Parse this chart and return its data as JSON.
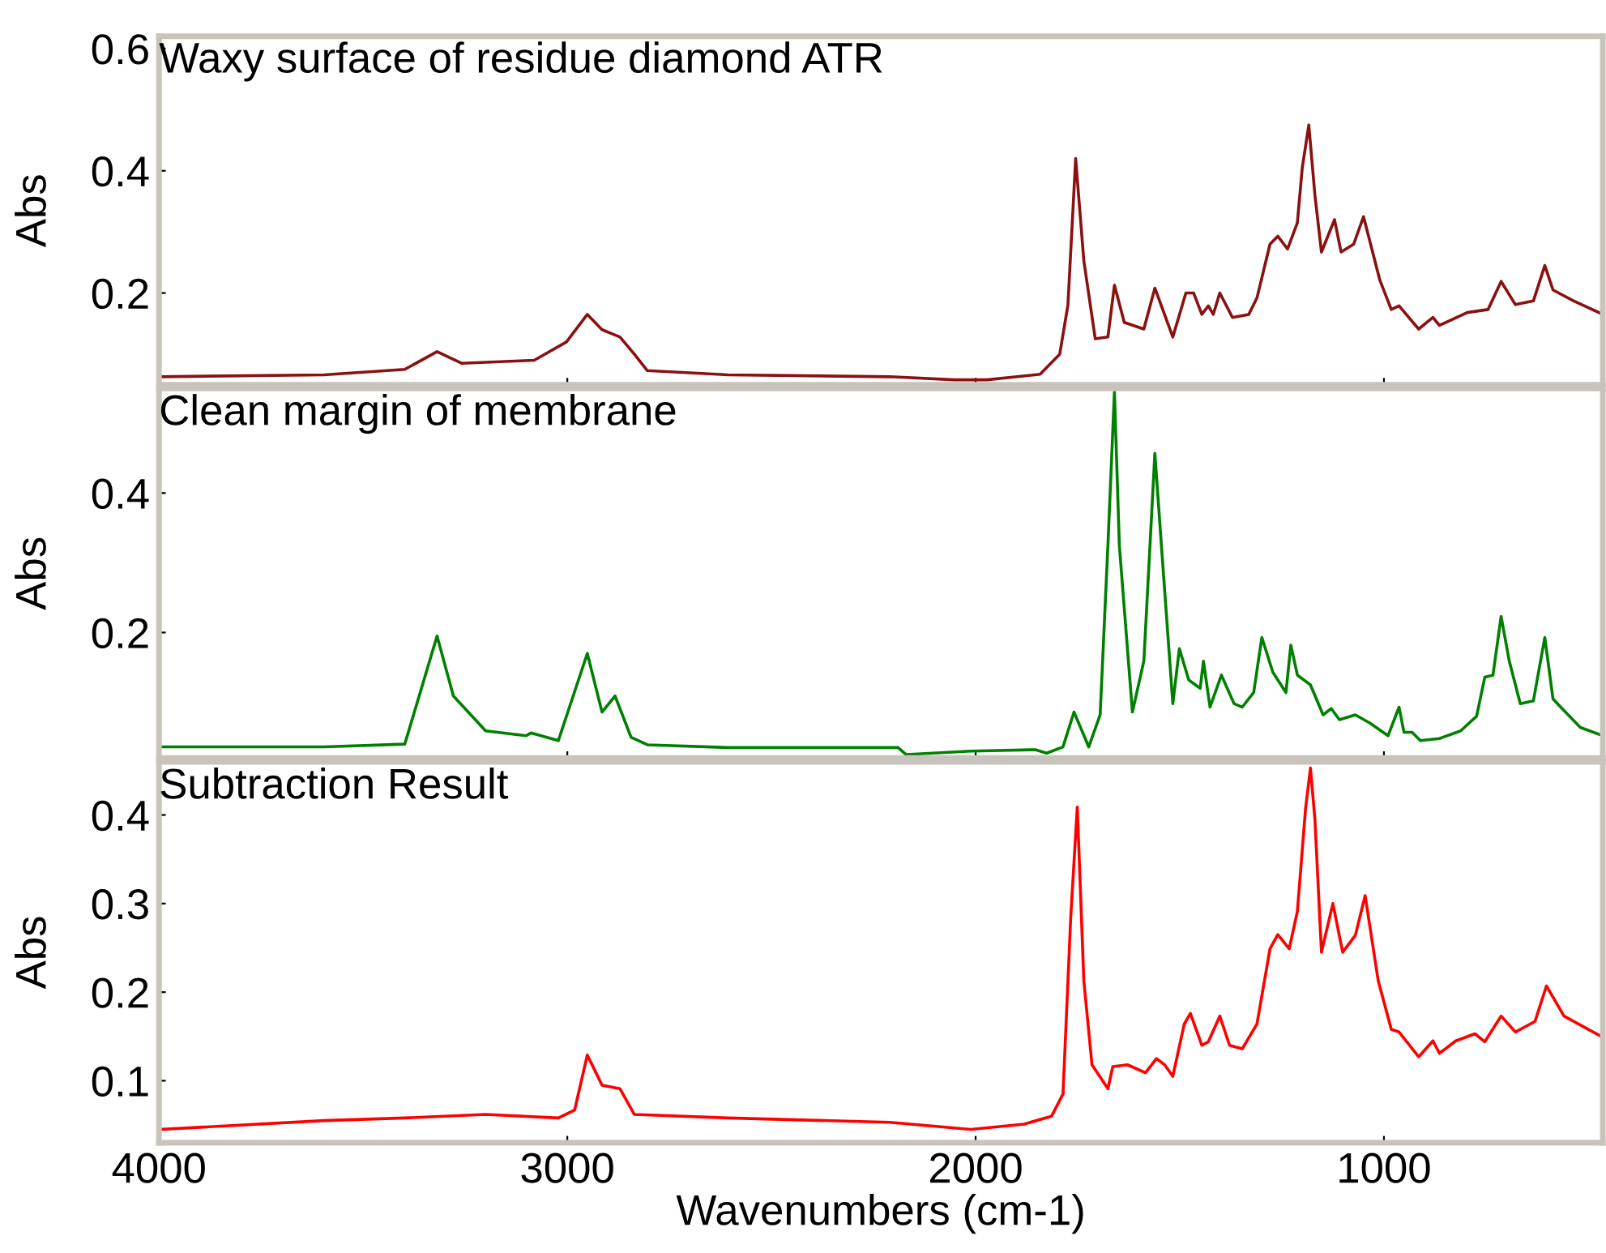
{
  "chart_data": [
    {
      "type": "line",
      "title": "Waxy surface of residue diamond ATR",
      "ylabel": "Abs",
      "xlim": [
        4000,
        464
      ],
      "ylim": [
        0.05,
        0.62
      ],
      "xticks": [
        4000,
        3000,
        2000,
        1000
      ],
      "yticks": [
        0.2,
        0.4,
        0.6
      ],
      "tick_labels": "y",
      "series": [
        {
          "color": "#8b1010",
          "x": [
            4000,
            3596,
            3398,
            3319,
            3259,
            3081,
            3002,
            2951,
            2915,
            2871,
            2836,
            2804,
            2606,
            2210,
            2052,
            1972,
            1842,
            1794,
            1774,
            1755,
            1735,
            1707,
            1676,
            1660,
            1636,
            1588,
            1561,
            1517,
            1485,
            1466,
            1446,
            1430,
            1418,
            1402,
            1371,
            1331,
            1311,
            1279,
            1260,
            1236,
            1212,
            1200,
            1184,
            1169,
            1153,
            1121,
            1105,
            1074,
            1050,
            1010,
            982,
            963,
            915,
            880,
            864,
            796,
            745,
            713,
            678,
            634,
            606,
            586,
            535,
            464
          ],
          "values": [
            0.063,
            0.066,
            0.075,
            0.104,
            0.085,
            0.09,
            0.12,
            0.165,
            0.14,
            0.128,
            0.1,
            0.073,
            0.066,
            0.063,
            0.058,
            0.058,
            0.067,
            0.1,
            0.18,
            0.42,
            0.253,
            0.125,
            0.128,
            0.213,
            0.152,
            0.141,
            0.208,
            0.128,
            0.2,
            0.2,
            0.165,
            0.179,
            0.165,
            0.2,
            0.16,
            0.165,
            0.192,
            0.28,
            0.293,
            0.272,
            0.315,
            0.405,
            0.475,
            0.36,
            0.267,
            0.32,
            0.267,
            0.28,
            0.325,
            0.221,
            0.173,
            0.179,
            0.141,
            0.16,
            0.147,
            0.168,
            0.173,
            0.219,
            0.181,
            0.187,
            0.245,
            0.205,
            0.187,
            0.165
          ]
        }
      ]
    },
    {
      "type": "line",
      "title": "Clean margin of membrane",
      "ylabel": "Abs",
      "xlim": [
        4000,
        464
      ],
      "ylim": [
        0.02,
        0.55
      ],
      "xticks": [
        4000,
        3000,
        2000,
        1000
      ],
      "yticks": [
        0.2,
        0.4
      ],
      "tick_labels": "y",
      "series": [
        {
          "color": "#008000",
          "x": [
            4000,
            3596,
            3398,
            3319,
            3279,
            3200,
            3101,
            3089,
            3022,
            2951,
            2915,
            2883,
            2844,
            2804,
            2606,
            2190,
            2170,
            2012,
            1854,
            1826,
            1786,
            1759,
            1723,
            1695,
            1676,
            1660,
            1648,
            1616,
            1588,
            1561,
            1545,
            1517,
            1501,
            1478,
            1450,
            1442,
            1426,
            1398,
            1367,
            1347,
            1319,
            1299,
            1272,
            1240,
            1228,
            1212,
            1180,
            1149,
            1129,
            1109,
            1070,
            1034,
            990,
            963,
            951,
            931,
            911,
            864,
            812,
            773,
            753,
            733,
            713,
            693,
            666,
            634,
            606,
            586,
            567,
            519,
            464
          ],
          "values": [
            0.036,
            0.036,
            0.04,
            0.195,
            0.109,
            0.059,
            0.052,
            0.056,
            0.045,
            0.17,
            0.086,
            0.109,
            0.05,
            0.039,
            0.035,
            0.035,
            0.025,
            0.03,
            0.032,
            0.027,
            0.036,
            0.086,
            0.036,
            0.082,
            0.325,
            0.545,
            0.325,
            0.086,
            0.159,
            0.457,
            0.325,
            0.098,
            0.177,
            0.132,
            0.12,
            0.159,
            0.093,
            0.139,
            0.098,
            0.093,
            0.114,
            0.193,
            0.143,
            0.114,
            0.182,
            0.139,
            0.125,
            0.082,
            0.091,
            0.075,
            0.082,
            0.07,
            0.052,
            0.093,
            0.057,
            0.057,
            0.045,
            0.048,
            0.059,
            0.08,
            0.136,
            0.139,
            0.223,
            0.159,
            0.098,
            0.102,
            0.193,
            0.105,
            0.093,
            0.064,
            0.052
          ]
        }
      ]
    },
    {
      "type": "line",
      "title": "Subtraction Result",
      "xlabel": "Wavenumbers (cm-1)",
      "ylabel": "Abs",
      "xlim": [
        4000,
        464
      ],
      "ylim": [
        0.03,
        0.46
      ],
      "xticks": [
        4000,
        3000,
        2000,
        1000
      ],
      "yticks": [
        0.1,
        0.2,
        0.3,
        0.4
      ],
      "series": [
        {
          "color": "#ff0000",
          "x": [
            4000,
            3596,
            3398,
            3200,
            3022,
            2982,
            2951,
            2915,
            2871,
            2836,
            2606,
            2210,
            2012,
            1881,
            1814,
            1786,
            1767,
            1751,
            1735,
            1715,
            1676,
            1664,
            1628,
            1584,
            1557,
            1537,
            1517,
            1489,
            1474,
            1446,
            1430,
            1402,
            1378,
            1347,
            1311,
            1279,
            1260,
            1232,
            1212,
            1192,
            1180,
            1169,
            1153,
            1125,
            1101,
            1070,
            1046,
            1014,
            982,
            963,
            915,
            880,
            864,
            824,
            777,
            753,
            713,
            678,
            630,
            602,
            559,
            464
          ],
          "values": [
            0.045,
            0.055,
            0.058,
            0.062,
            0.058,
            0.067,
            0.129,
            0.095,
            0.091,
            0.062,
            0.058,
            0.053,
            0.045,
            0.051,
            0.06,
            0.085,
            0.285,
            0.409,
            0.213,
            0.118,
            0.091,
            0.116,
            0.118,
            0.109,
            0.125,
            0.118,
            0.105,
            0.164,
            0.176,
            0.14,
            0.144,
            0.173,
            0.14,
            0.136,
            0.164,
            0.249,
            0.265,
            0.249,
            0.291,
            0.407,
            0.453,
            0.395,
            0.245,
            0.3,
            0.245,
            0.264,
            0.309,
            0.213,
            0.158,
            0.155,
            0.127,
            0.145,
            0.131,
            0.145,
            0.153,
            0.144,
            0.173,
            0.155,
            0.167,
            0.207,
            0.173,
            0.149
          ]
        }
      ]
    }
  ]
}
